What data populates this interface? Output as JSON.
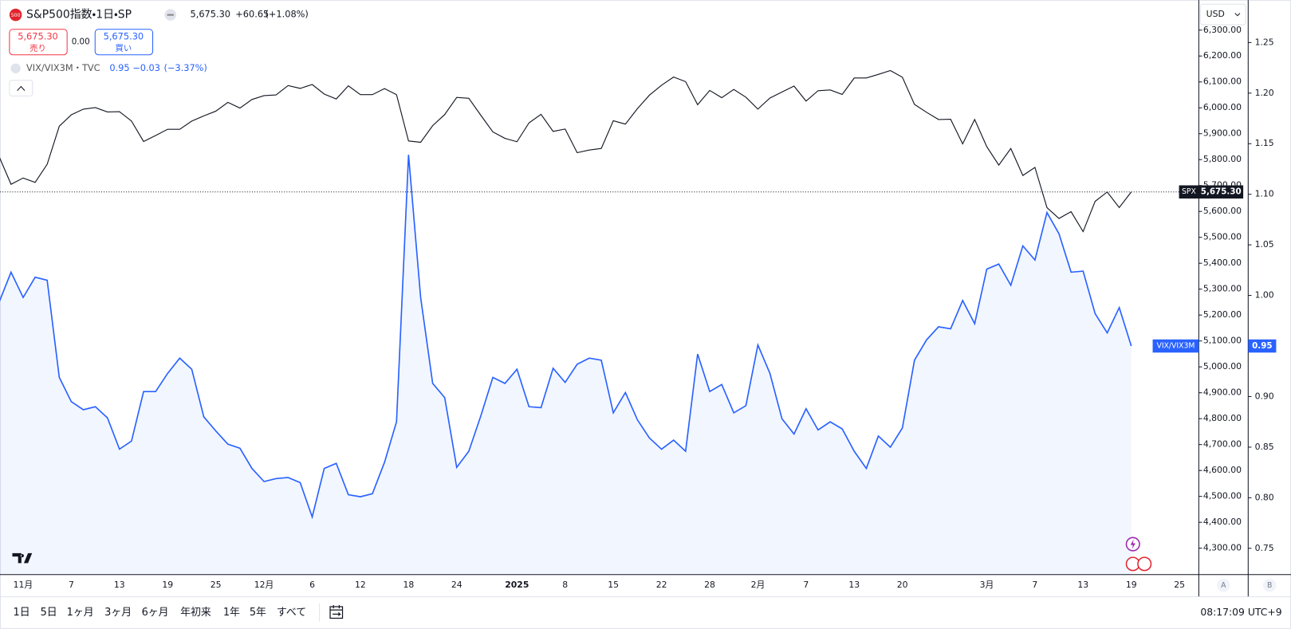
{
  "legend": {
    "logo": "500",
    "title": "S&P500指数・1日・SP",
    "price": "5,675.30",
    "change": "+60.65",
    "change_pct": "(+1.08%)",
    "sell_price": "5,675.30",
    "sell_label": "売り",
    "spread": "0.00",
    "buy_price": "5,675.30",
    "buy_label": "買い",
    "second_title": "VIX/VIX3M・TVC",
    "second_price": "0.95",
    "second_change": "−0.03",
    "second_change_pct": "(−3.37%)"
  },
  "toolbar": {
    "ranges": [
      "1日",
      "5日",
      "1ヶ月",
      "3ヶ月",
      "6ヶ月",
      "年初来",
      "1年",
      "5年",
      "すべて"
    ],
    "clock": "08:17:09 UTC+9",
    "currency": "USD",
    "scale_buttons": [
      "A",
      "B"
    ]
  },
  "chart_data": {
    "type": "line",
    "grid": false,
    "categories": [
      null,
      null,
      "11月",
      null,
      null,
      null,
      "7",
      null,
      null,
      null,
      "13",
      null,
      null,
      null,
      "19",
      null,
      null,
      null,
      "25",
      null,
      null,
      null,
      "12月",
      null,
      null,
      null,
      "6",
      null,
      null,
      null,
      "12",
      null,
      null,
      null,
      "18",
      null,
      null,
      null,
      "24",
      null,
      null,
      null,
      null,
      "2025",
      null,
      null,
      null,
      "8",
      null,
      null,
      null,
      "15",
      null,
      null,
      null,
      "22",
      null,
      null,
      null,
      "28",
      null,
      null,
      null,
      "2月",
      null,
      null,
      null,
      "7",
      null,
      null,
      null,
      "13",
      null,
      null,
      null,
      "20",
      null,
      null,
      null,
      null,
      null,
      null,
      "3月",
      null,
      null,
      null,
      "7",
      null,
      null,
      null,
      "13",
      null,
      null,
      null,
      "19",
      null,
      null,
      null,
      "25"
    ],
    "series": [
      {
        "name": "SPX",
        "color": "#131722",
        "last_label": "5,675.30",
        "values": [
          5813,
          5705,
          5729,
          5712,
          5782,
          5929,
          5973,
          5995,
          6001,
          5984,
          5985,
          5949,
          5870,
          5893,
          5917,
          5917,
          5949,
          5969,
          5987,
          6021,
          5999,
          6032,
          6047,
          6050,
          6086,
          6075,
          6090,
          6053,
          6034,
          6085,
          6051,
          6051,
          6074,
          6051,
          5872,
          5867,
          5931,
          5974,
          6040,
          6037,
          5971,
          5907,
          5882,
          5869,
          5942,
          5975,
          5909,
          5918,
          5827,
          5837,
          5843,
          5950,
          5937,
          5997,
          6049,
          6087,
          6119,
          6101,
          6012,
          6067,
          6039,
          6071,
          6041,
          5995,
          6038,
          6061,
          6084,
          6026,
          6066,
          6069,
          6052,
          6115,
          6115,
          6129,
          6144,
          6118,
          6013,
          5983,
          5955,
          5956,
          5861,
          5955,
          5850,
          5779,
          5843,
          5739,
          5770,
          5615,
          5573,
          5599,
          5522,
          5639,
          5675,
          5615,
          5675.3,
          null,
          null,
          null,
          null
        ]
      },
      {
        "name": "VIX/VIX3M",
        "color": "#2962ff",
        "axis": "y2",
        "values": [
          0.993,
          1.023,
          0.998,
          1.018,
          1.015,
          0.919,
          0.895,
          0.887,
          0.89,
          0.879,
          0.848,
          0.856,
          0.905,
          0.905,
          0.923,
          0.938,
          0.927,
          0.88,
          0.866,
          0.853,
          0.849,
          0.829,
          0.816,
          0.819,
          0.82,
          0.815,
          0.781,
          0.829,
          0.834,
          0.803,
          0.801,
          0.804,
          0.835,
          0.875,
          1.139,
          0.998,
          0.913,
          0.899,
          0.83,
          0.846,
          0.881,
          0.919,
          0.913,
          0.927,
          0.89,
          0.889,
          0.928,
          0.914,
          0.932,
          0.938,
          0.936,
          0.884,
          0.904,
          0.877,
          0.859,
          0.848,
          0.857,
          0.846,
          0.942,
          0.905,
          0.912,
          0.884,
          0.891,
          0.951,
          0.923,
          0.878,
          0.863,
          0.888,
          0.867,
          0.875,
          0.868,
          0.846,
          0.829,
          0.861,
          0.85,
          0.869,
          0.936,
          0.956,
          0.969,
          0.967,
          0.995,
          0.972,
          1.026,
          1.031,
          1.01,
          1.049,
          1.035,
          1.082,
          1.061,
          1.023,
          1.024,
          0.982,
          0.963,
          0.988,
          0.95,
          null,
          null,
          null,
          null
        ]
      }
    ],
    "ylim": [
      4198,
      6416
    ],
    "yticks": [
      {
        "value": 4300,
        "label": "4,300.00"
      },
      {
        "value": 4400,
        "label": "4,400.00"
      },
      {
        "value": 4500,
        "label": "4,500.00"
      },
      {
        "value": 4600,
        "label": "4,600.00"
      },
      {
        "value": 4700,
        "label": "4,700.00"
      },
      {
        "value": 4800,
        "label": "4,800.00"
      },
      {
        "value": 4900,
        "label": "4,900.00"
      },
      {
        "value": 5000,
        "label": "5,000.00"
      },
      {
        "value": 5100,
        "label": "5,100.00"
      },
      {
        "value": 5200,
        "label": "5,200.00"
      },
      {
        "value": 5300,
        "label": "5,300.00"
      },
      {
        "value": 5400,
        "label": "5,400.00"
      },
      {
        "value": 5500,
        "label": "5,500.00"
      },
      {
        "value": 5600,
        "label": "5,600.00"
      },
      {
        "value": 5700,
        "label": "5,700.00"
      },
      {
        "value": 5800,
        "label": "5,800.00"
      },
      {
        "value": 5900,
        "label": "5,900.00"
      },
      {
        "value": 6000,
        "label": "6,000.00"
      },
      {
        "value": 6100,
        "label": "6,100.00"
      },
      {
        "value": 6200,
        "label": "6,200.00"
      },
      {
        "value": 6300,
        "label": "6,300.00"
      }
    ],
    "y2lim": [
      0.724,
      1.292
    ],
    "y2ticks": [
      0.75,
      {
        "value": 0.8,
        "label": "0.80"
      },
      0.85,
      {
        "value": 0.9,
        "label": "0.90"
      },
      0.95,
      {
        "value": 1.0,
        "label": "1.00"
      },
      1.05,
      {
        "value": 1.1,
        "label": "1.10"
      },
      1.15,
      {
        "value": 1.2,
        "label": "1.20"
      },
      1.25
    ]
  }
}
